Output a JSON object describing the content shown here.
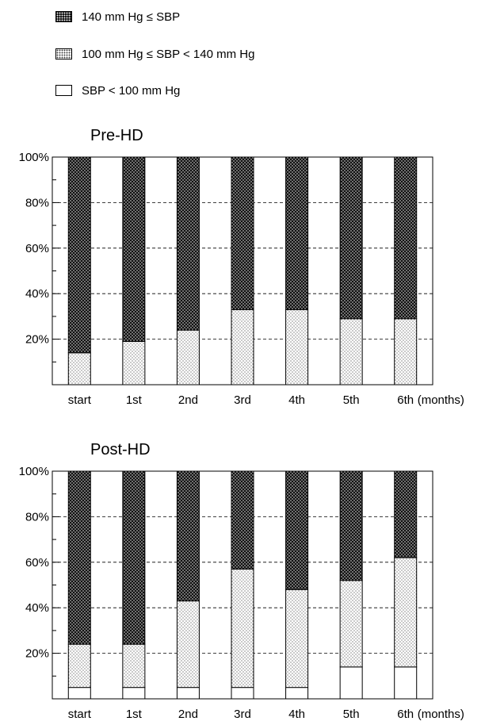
{
  "legend": {
    "items": [
      {
        "key": "high",
        "label": "140 mm Hg ≤ SBP"
      },
      {
        "key": "mid",
        "label": "100 mm Hg ≤ SBP < 140 mm Hg"
      },
      {
        "key": "low",
        "label": "SBP < 100 mm Hg"
      }
    ]
  },
  "chart_data": [
    {
      "type": "bar",
      "stacked": true,
      "title": "Pre-HD",
      "categories": [
        "start",
        "1st",
        "2nd",
        "3rd",
        "4th",
        "5th",
        "6th"
      ],
      "x_unit_label": "(months)",
      "ylim": [
        0,
        100
      ],
      "yticks": [
        "20%",
        "40%",
        "60%",
        "80%",
        "100%"
      ],
      "grid": "horizontal dashed",
      "series": [
        {
          "name": "SBP < 100 mm Hg",
          "key": "low",
          "values": [
            0,
            0,
            0,
            0,
            0,
            0,
            0
          ]
        },
        {
          "name": "100 mm Hg ≤ SBP < 140 mm Hg",
          "key": "mid",
          "values": [
            14,
            19,
            24,
            33,
            33,
            29,
            29
          ]
        },
        {
          "name": "140 mm Hg ≤ SBP",
          "key": "high",
          "values": [
            86,
            81,
            76,
            67,
            67,
            71,
            71
          ]
        }
      ]
    },
    {
      "type": "bar",
      "stacked": true,
      "title": "Post-HD",
      "categories": [
        "start",
        "1st",
        "2nd",
        "3rd",
        "4th",
        "5th",
        "6th"
      ],
      "x_unit_label": "(months)",
      "ylim": [
        0,
        100
      ],
      "yticks": [
        "20%",
        "40%",
        "60%",
        "80%",
        "100%"
      ],
      "grid": "horizontal dashed",
      "series": [
        {
          "name": "SBP < 100 mm Hg",
          "key": "low",
          "values": [
            5,
            5,
            5,
            5,
            5,
            14,
            14
          ]
        },
        {
          "name": "100 mm Hg ≤ SBP < 140 mm Hg",
          "key": "mid",
          "values": [
            19,
            19,
            38,
            52,
            43,
            38,
            48
          ]
        },
        {
          "name": "140 mm Hg ≤ SBP",
          "key": "high",
          "values": [
            76,
            76,
            57,
            43,
            52,
            48,
            38
          ]
        }
      ]
    }
  ]
}
